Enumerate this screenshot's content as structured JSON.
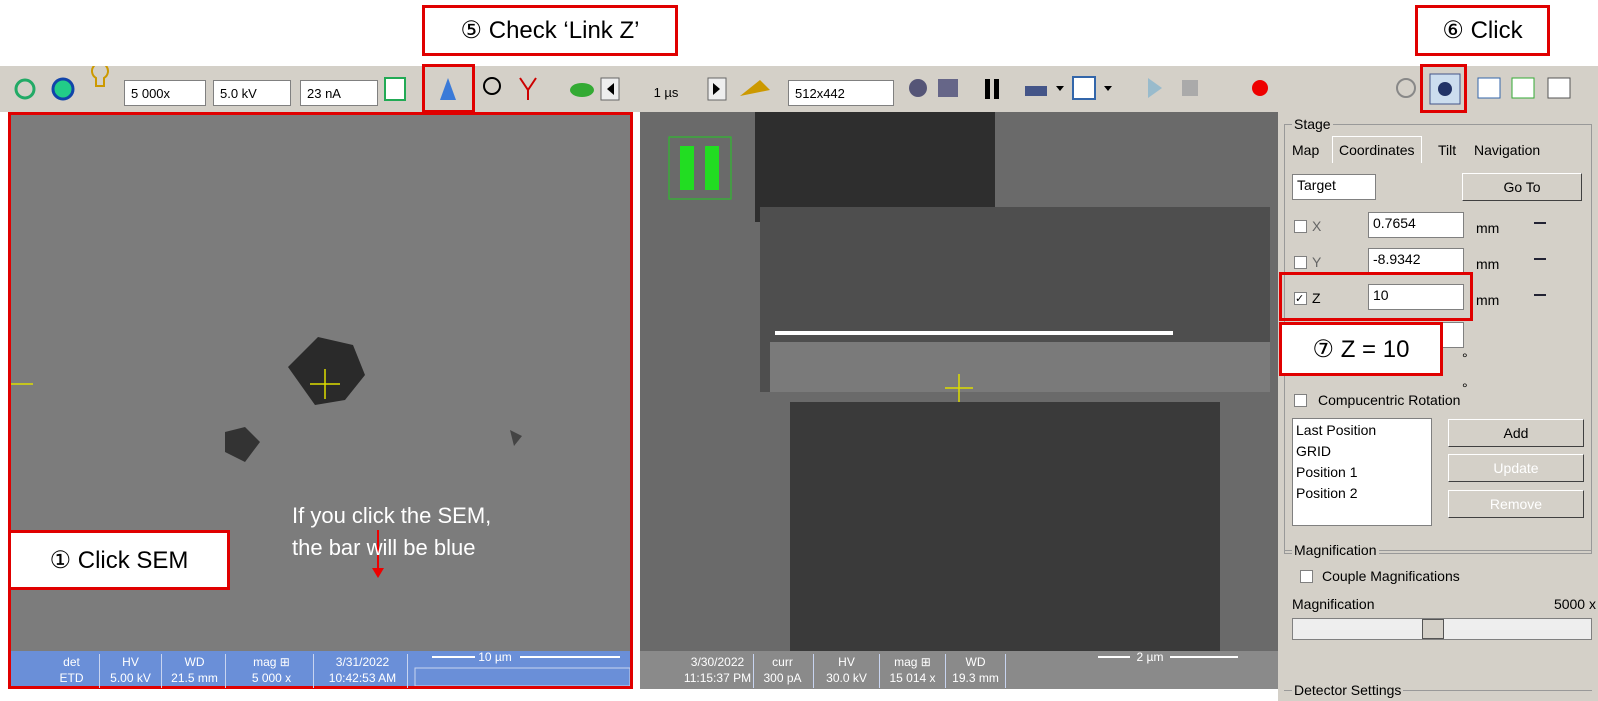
{
  "annotations": {
    "link_z": "⑤ Check ‘Link Z’",
    "click": "⑥ Click",
    "click_sem": "① Click SEM",
    "sem_note": [
      "If you click the SEM,",
      "the bar will be blue"
    ],
    "z_set": "⑦ Z = 10"
  },
  "toolbar": {
    "magnification": "5 000x",
    "voltage": "5.0 kV",
    "current": "23 nA",
    "dwell_time": "1 µs",
    "resolution": "512x442"
  },
  "sem_status": {
    "fields": [
      {
        "label": "det",
        "value": "ETD"
      },
      {
        "label": "HV",
        "value": "5.00 kV"
      },
      {
        "label": "WD",
        "value": "21.5 mm"
      },
      {
        "label": "mag ⊞",
        "value": "5 000 x"
      },
      {
        "label": "3/31/2022",
        "value": "10:42:53 AM"
      }
    ],
    "scale": "10 µm"
  },
  "fib_status": {
    "fields": [
      {
        "label": "3/30/2022",
        "value": "11:15:37 PM"
      },
      {
        "label": "curr",
        "value": "300 pA"
      },
      {
        "label": "HV",
        "value": "30.0 kV"
      },
      {
        "label": "mag ⊞",
        "value": "15 014 x"
      },
      {
        "label": "WD",
        "value": "19.3 mm"
      }
    ],
    "scale": "2 µm"
  },
  "stage": {
    "title": "Stage",
    "tabs": [
      "Map",
      "Coordinates",
      "Tilt",
      "Navigation"
    ],
    "mode": "Target",
    "go_to": "Go To",
    "coordinates": [
      {
        "axis": "X",
        "value": "0.7654",
        "unit": "mm"
      },
      {
        "axis": "Y",
        "value": "-8.9342",
        "unit": "mm"
      },
      {
        "axis": "Z",
        "value": "10",
        "unit": "mm"
      }
    ],
    "angle_units": [
      "°",
      "°"
    ],
    "compucentric": "Compucentric Rotation",
    "positions": [
      "Last Position",
      "GRID",
      "Position 1",
      "Position 2"
    ],
    "buttons": [
      "Add",
      "Update",
      "Remove"
    ]
  },
  "magnification": {
    "title": "Magnification",
    "couple": "Couple Magnifications",
    "label": "Magnification",
    "value": "5000 x"
  },
  "detector": {
    "title": "Detector Settings"
  }
}
